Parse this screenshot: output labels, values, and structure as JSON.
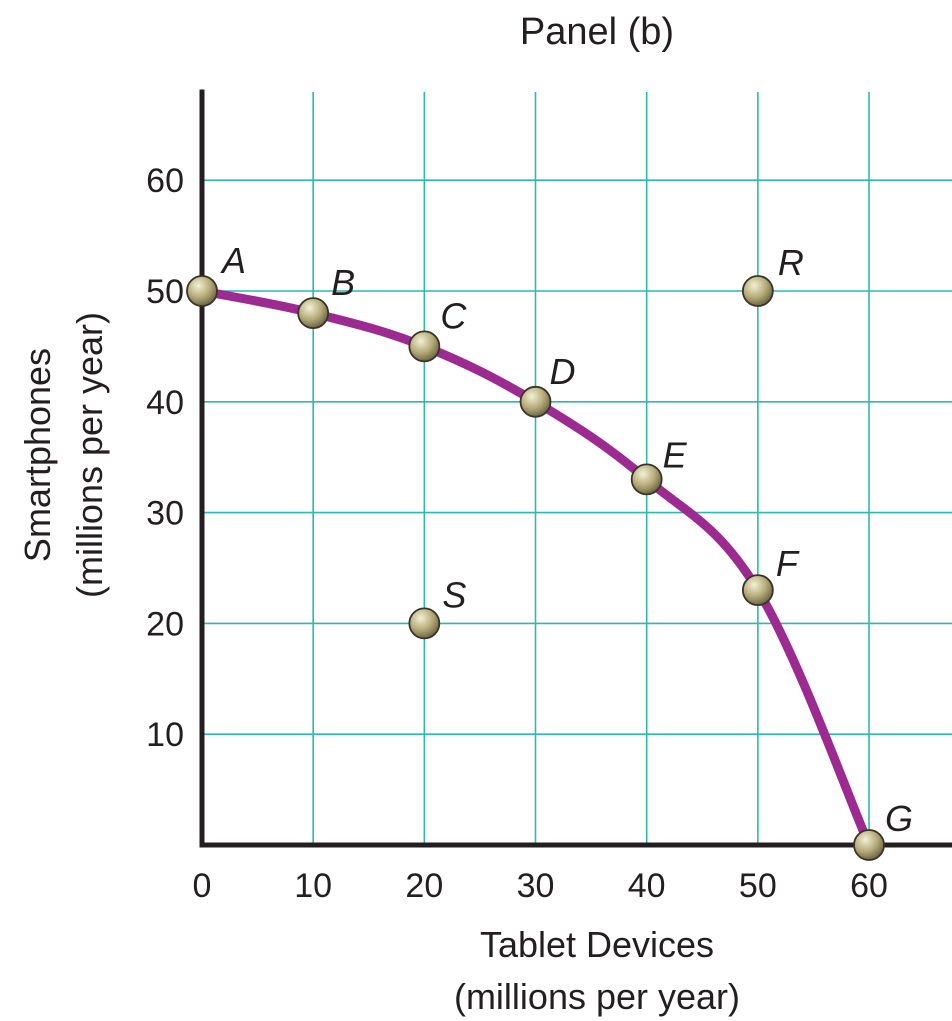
{
  "chart_data": {
    "type": "line",
    "title": "Panel (b)",
    "xlabel_lines": [
      "Tablet Devices",
      "(millions per year)"
    ],
    "ylabel_lines": [
      "Smartphones",
      "(millions per year)"
    ],
    "xlim": [
      0,
      60
    ],
    "ylim": [
      0,
      60
    ],
    "x_ticks": [
      0,
      10,
      20,
      30,
      40,
      50,
      60
    ],
    "y_ticks": [
      10,
      20,
      30,
      40,
      50,
      60
    ],
    "x_tick_labels": [
      "0",
      "10",
      "20",
      "30",
      "40",
      "50",
      "60"
    ],
    "y_tick_labels": [
      "10",
      "20",
      "30",
      "40",
      "50",
      "60"
    ],
    "grid": true,
    "curve": {
      "points": [
        {
          "label": "A",
          "x": 0,
          "y": 50
        },
        {
          "label": "B",
          "x": 10,
          "y": 48
        },
        {
          "label": "C",
          "x": 20,
          "y": 45
        },
        {
          "label": "D",
          "x": 30,
          "y": 40
        },
        {
          "label": "E",
          "x": 40,
          "y": 33
        },
        {
          "label": "F",
          "x": 50,
          "y": 23
        },
        {
          "label": "G",
          "x": 60,
          "y": 0
        }
      ]
    },
    "other_points": [
      {
        "label": "R",
        "x": 50,
        "y": 50
      },
      {
        "label": "S",
        "x": 20,
        "y": 20
      }
    ]
  },
  "colors": {
    "curve": "#9c2a91",
    "grid": "#2db8b0",
    "axis": "#231f20",
    "point_fill_light": "#f3f0d4",
    "point_fill_mid": "#b7ad7b",
    "point_fill_dark": "#6b6343"
  }
}
